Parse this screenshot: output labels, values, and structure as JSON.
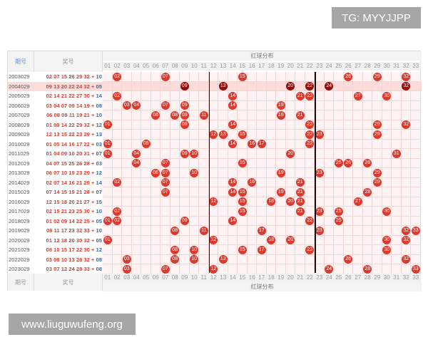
{
  "watermark_top": "TG: MYYJJPP",
  "watermark_bottom": "www.liuguwufeng.org",
  "header": {
    "period": "期号",
    "draw": "奖号",
    "red_dist": "红球分布"
  },
  "footer": {
    "period": "期号",
    "draw": "奖号",
    "red_dist": "红球分布"
  },
  "columns": [
    "01",
    "02",
    "03",
    "04",
    "05",
    "06",
    "07",
    "08",
    "09",
    "10",
    "11",
    "12",
    "13",
    "14",
    "15",
    "16",
    "17",
    "18",
    "19",
    "20",
    "21",
    "22",
    "23",
    "24",
    "25",
    "26",
    "27",
    "28",
    "29",
    "30",
    "31",
    "32",
    "33"
  ],
  "colors": {
    "ball": "#db3a2e",
    "ball_highlight": "#8f0e0c",
    "red_text": "#c9453c",
    "blue_text": "#2b6cb3"
  },
  "highlight_period": "2004029",
  "rows": [
    {
      "period": "2003029",
      "reds": [
        "02",
        "07",
        "15",
        "26",
        "29",
        "32"
      ],
      "blue": "10"
    },
    {
      "period": "2004029",
      "reds": [
        "09",
        "13",
        "20",
        "22",
        "24",
        "32"
      ],
      "blue": "05"
    },
    {
      "period": "2005029",
      "reds": [
        "02",
        "14",
        "21",
        "22",
        "27",
        "30"
      ],
      "blue": "14"
    },
    {
      "period": "2006029",
      "reds": [
        "03",
        "04",
        "07",
        "09",
        "14",
        "19"
      ],
      "blue": "08"
    },
    {
      "period": "2007029",
      "reds": [
        "06",
        "08",
        "09",
        "11",
        "19",
        "21"
      ],
      "blue": "10"
    },
    {
      "period": "2008029",
      "reds": [
        "01",
        "09",
        "14",
        "22",
        "29",
        "32"
      ],
      "blue": "12"
    },
    {
      "period": "2009029",
      "reds": [
        "12",
        "13",
        "15",
        "22",
        "23",
        "29"
      ],
      "blue": "13"
    },
    {
      "period": "2010029",
      "reds": [
        "01",
        "05",
        "14",
        "16",
        "17",
        "22"
      ],
      "blue": "03"
    },
    {
      "period": "2011029",
      "reds": [
        "01",
        "04",
        "09",
        "10",
        "20",
        "31"
      ],
      "blue": "07"
    },
    {
      "period": "2012029",
      "reds": [
        "04",
        "07",
        "15",
        "25",
        "26",
        "28"
      ],
      "blue": "03"
    },
    {
      "period": "2013029",
      "reds": [
        "06",
        "07",
        "10",
        "19",
        "23",
        "29"
      ],
      "blue": "12"
    },
    {
      "period": "2014029",
      "reds": [
        "02",
        "07",
        "14",
        "16",
        "21",
        "29"
      ],
      "blue": "14"
    },
    {
      "period": "2015029",
      "reds": [
        "07",
        "14",
        "15",
        "19",
        "21",
        "28"
      ],
      "blue": "07"
    },
    {
      "period": "2016029",
      "reds": [
        "12",
        "15",
        "18",
        "20",
        "21",
        "27"
      ],
      "blue": "15"
    },
    {
      "period": "2017029",
      "reds": [
        "02",
        "15",
        "21",
        "23",
        "25",
        "30"
      ],
      "blue": "10"
    },
    {
      "period": "2018029",
      "reds": [
        "01",
        "02",
        "09",
        "14",
        "22",
        "25"
      ],
      "blue": "05"
    },
    {
      "period": "2019029",
      "reds": [
        "08",
        "11",
        "17",
        "23",
        "32",
        "33"
      ],
      "blue": "10"
    },
    {
      "period": "2020029",
      "reds": [
        "01",
        "12",
        "18",
        "20",
        "30",
        "32"
      ],
      "blue": "05"
    },
    {
      "period": "2021029",
      "reds": [
        "08",
        "10",
        "15",
        "17",
        "22",
        "30"
      ],
      "blue": "12"
    },
    {
      "period": "2022029",
      "reds": [
        "03",
        "08",
        "10",
        "13",
        "26",
        "32"
      ],
      "blue": "08"
    },
    {
      "period": "2023029",
      "reds": [
        "03",
        "07",
        "12",
        "24",
        "28",
        "33"
      ],
      "blue": "08"
    }
  ]
}
